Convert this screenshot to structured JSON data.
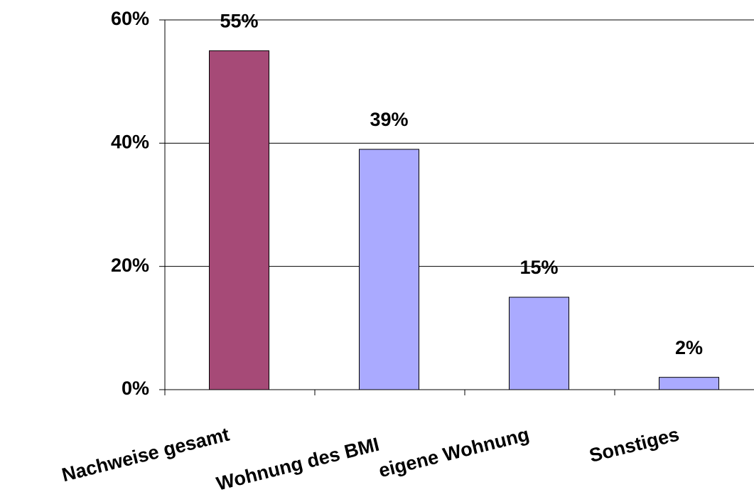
{
  "chart_data": {
    "type": "bar",
    "categories": [
      "Nachweise gesamt",
      "Wohnung des BMI",
      "eigene Wohnung",
      "Sonstiges"
    ],
    "values": [
      55,
      39,
      15,
      2
    ],
    "value_labels": [
      "55%",
      "39%",
      "15%",
      "2%"
    ],
    "colors": [
      "#a64a77",
      "#aaaaff",
      "#aaaaff",
      "#aaaaff"
    ],
    "ylim": [
      0,
      60
    ],
    "yticks": [
      {
        "value": 0,
        "label": "0%"
      },
      {
        "value": 20,
        "label": "20%"
      },
      {
        "value": 40,
        "label": "40%"
      },
      {
        "value": 60,
        "label": "60%"
      }
    ],
    "grid": true
  }
}
